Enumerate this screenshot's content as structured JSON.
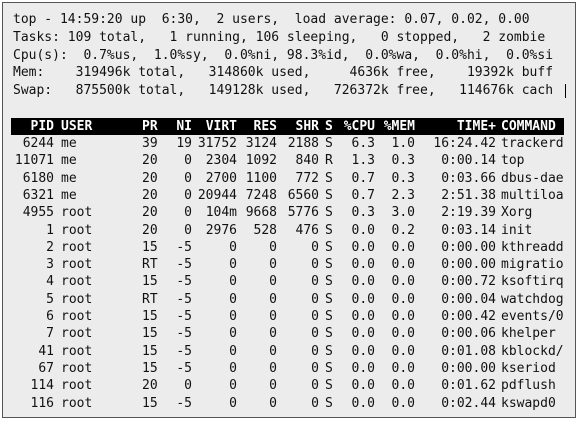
{
  "summary": [
    "top - 14:59:20 up  6:30,  2 users,  load average: 0.07, 0.02, 0.00",
    "Tasks: 109 total,   1 running, 106 sleeping,   0 stopped,   2 zombie",
    "Cpu(s):  0.7%us,  1.0%sy,  0.0%ni, 98.3%id,  0.0%wa,  0.0%hi,  0.0%si",
    "Mem:    319496k total,   314860k used,     4636k free,    19392k buff",
    "Swap:   875500k total,   149128k used,   726372k free,   114676k cach"
  ],
  "columns": [
    "PID",
    "USER",
    "PR",
    "NI",
    "VIRT",
    "RES",
    "SHR",
    "S",
    "%CPU",
    "%MEM",
    "TIME+",
    "COMMAND"
  ],
  "processes": [
    [
      "6244",
      "me",
      "39",
      "19",
      "31752",
      "3124",
      "2188",
      "S",
      "6.3",
      "1.0",
      "16:24.42",
      "trackerd"
    ],
    [
      "11071",
      "me",
      "20",
      "0",
      "2304",
      "1092",
      "840",
      "R",
      "1.3",
      "0.3",
      "0:00.14",
      "top"
    ],
    [
      "6180",
      "me",
      "20",
      "0",
      "2700",
      "1100",
      "772",
      "S",
      "0.7",
      "0.3",
      "0:03.66",
      "dbus-dae"
    ],
    [
      "6321",
      "me",
      "20",
      "0",
      "20944",
      "7248",
      "6560",
      "S",
      "0.7",
      "2.3",
      "2:51.38",
      "multiloa"
    ],
    [
      "4955",
      "root",
      "20",
      "0",
      "104m",
      "9668",
      "5776",
      "S",
      "0.3",
      "3.0",
      "2:19.39",
      "Xorg"
    ],
    [
      "1",
      "root",
      "20",
      "0",
      "2976",
      "528",
      "476",
      "S",
      "0.0",
      "0.2",
      "0:03.14",
      "init"
    ],
    [
      "2",
      "root",
      "15",
      "-5",
      "0",
      "0",
      "0",
      "S",
      "0.0",
      "0.0",
      "0:00.00",
      "kthreadd"
    ],
    [
      "3",
      "root",
      "RT",
      "-5",
      "0",
      "0",
      "0",
      "S",
      "0.0",
      "0.0",
      "0:00.00",
      "migratio"
    ],
    [
      "4",
      "root",
      "15",
      "-5",
      "0",
      "0",
      "0",
      "S",
      "0.0",
      "0.0",
      "0:00.72",
      "ksoftirq"
    ],
    [
      "5",
      "root",
      "RT",
      "-5",
      "0",
      "0",
      "0",
      "S",
      "0.0",
      "0.0",
      "0:00.04",
      "watchdog"
    ],
    [
      "6",
      "root",
      "15",
      "-5",
      "0",
      "0",
      "0",
      "S",
      "0.0",
      "0.0",
      "0:00.42",
      "events/0"
    ],
    [
      "7",
      "root",
      "15",
      "-5",
      "0",
      "0",
      "0",
      "S",
      "0.0",
      "0.0",
      "0:00.06",
      "khelper"
    ],
    [
      "41",
      "root",
      "15",
      "-5",
      "0",
      "0",
      "0",
      "S",
      "0.0",
      "0.0",
      "0:01.08",
      "kblockd/"
    ],
    [
      "67",
      "root",
      "15",
      "-5",
      "0",
      "0",
      "0",
      "S",
      "0.0",
      "0.0",
      "0:00.00",
      "kseriod"
    ],
    [
      "114",
      "root",
      "20",
      "0",
      "0",
      "0",
      "0",
      "S",
      "0.0",
      "0.0",
      "0:01.62",
      "pdflush"
    ],
    [
      "116",
      "root",
      "15",
      "-5",
      "0",
      "0",
      "0",
      "S",
      "0.0",
      "0.0",
      "0:02.44",
      "kswapd0"
    ]
  ]
}
